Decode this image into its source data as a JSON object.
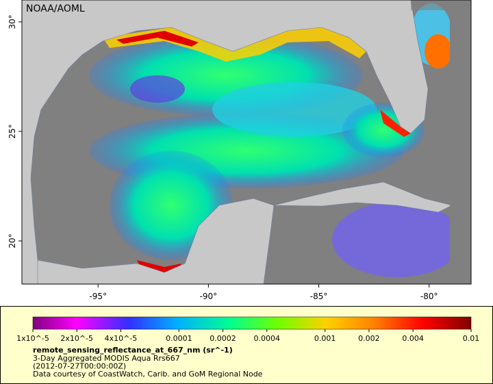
{
  "map": {
    "credit": "NOAA/AOML",
    "xlim": [
      -98.45,
      -78.1
    ],
    "ylim": [
      18.03,
      31
    ],
    "xticks": [
      {
        "value": -95,
        "label": "-95°"
      },
      {
        "value": -90,
        "label": "-90°"
      },
      {
        "value": -85,
        "label": "-85°"
      },
      {
        "value": -80,
        "label": "-80°"
      }
    ],
    "yticks": [
      {
        "value": 30,
        "label": "30°"
      },
      {
        "value": 25,
        "label": "25°"
      },
      {
        "value": 20,
        "label": "20°"
      }
    ]
  },
  "legend": {
    "colorbar_range": [
      1e-05,
      0.01
    ],
    "colorbar_ticks": [
      {
        "value": 1e-05,
        "label": "1x10^-5"
      },
      {
        "value": 2e-05,
        "label": "2x10^-5"
      },
      {
        "value": 4e-05,
        "label": "4x10^-5"
      },
      {
        "value": 0.0001,
        "label": "0.0001"
      },
      {
        "value": 0.0002,
        "label": "0.0002"
      },
      {
        "value": 0.0004,
        "label": "0.0004"
      },
      {
        "value": 0.001,
        "label": "0.001"
      },
      {
        "value": 0.002,
        "label": "0.002"
      },
      {
        "value": 0.004,
        "label": "0.004"
      },
      {
        "value": 0.01,
        "label": "0.01"
      }
    ],
    "variable": "remote_sensing_reflectance_at_667_nm (sr^-1)",
    "lines": [
      "3-Day Aggregated MODIS Aqua Rrs667",
      "(2012-07-27T00:00:00Z)",
      "Data courtesy of CoastWatch, Carib. and GoM Regional Node"
    ]
  }
}
